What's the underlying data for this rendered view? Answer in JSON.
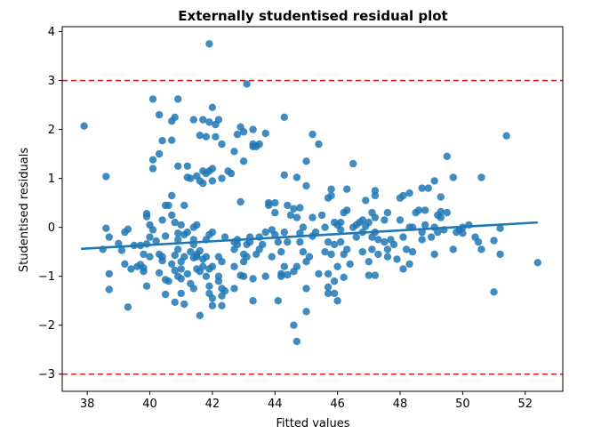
{
  "chart_data": {
    "type": "scatter",
    "title": "Externally studentised residual plot",
    "xlabel": "Fitted values",
    "ylabel": "Studentised residuals",
    "xlim": [
      37.2,
      53.2
    ],
    "ylim": [
      -3.35,
      4.1
    ],
    "xticks": [
      38,
      40,
      42,
      44,
      46,
      48,
      50,
      52
    ],
    "yticks": [
      -3,
      -2,
      -1,
      0,
      1,
      2,
      3,
      4
    ],
    "grid": false,
    "point_color": "#1f77b4",
    "reference_lines": [
      {
        "y": 3,
        "color": "#e41a1c",
        "style": "dashed"
      },
      {
        "y": -3,
        "color": "#e41a1c",
        "style": "dashed"
      }
    ],
    "trend_line": {
      "x": [
        37.8,
        52.4
      ],
      "y": [
        -0.44,
        0.1
      ],
      "color": "#1f77b4"
    },
    "points": [
      [
        37.9,
        2.07
      ],
      [
        38.6,
        1.04
      ],
      [
        38.5,
        -0.45
      ],
      [
        38.7,
        -0.2
      ],
      [
        38.6,
        -0.02
      ],
      [
        38.7,
        -0.95
      ],
      [
        38.7,
        -1.27
      ],
      [
        39.0,
        -0.33
      ],
      [
        39.1,
        -0.47
      ],
      [
        39.2,
        -0.1
      ],
      [
        39.2,
        -0.75
      ],
      [
        39.3,
        -0.04
      ],
      [
        39.3,
        -1.63
      ],
      [
        39.4,
        -0.85
      ],
      [
        39.5,
        -0.37
      ],
      [
        39.6,
        -0.8
      ],
      [
        39.7,
        -0.76
      ],
      [
        39.7,
        -0.37
      ],
      [
        39.8,
        -0.9
      ],
      [
        39.8,
        -0.55
      ],
      [
        39.8,
        -0.83
      ],
      [
        39.9,
        -0.34
      ],
      [
        39.9,
        -1.2
      ],
      [
        39.9,
        0.22
      ],
      [
        40.0,
        0.05
      ],
      [
        39.9,
        0.28
      ],
      [
        40.0,
        -0.6
      ],
      [
        40.0,
        -0.2
      ],
      [
        40.1,
        1.2
      ],
      [
        40.1,
        1.38
      ],
      [
        40.1,
        2.62
      ],
      [
        40.1,
        -0.05
      ],
      [
        40.2,
        -0.28
      ],
      [
        40.3,
        2.3
      ],
      [
        40.3,
        1.5
      ],
      [
        40.3,
        -0.55
      ],
      [
        40.3,
        -0.93
      ],
      [
        40.4,
        -0.6
      ],
      [
        40.4,
        0.15
      ],
      [
        40.4,
        -0.68
      ],
      [
        40.4,
        1.77
      ],
      [
        40.5,
        -1.07
      ],
      [
        40.5,
        -1.37
      ],
      [
        40.5,
        -0.18
      ],
      [
        40.5,
        0.45
      ],
      [
        40.6,
        0.45
      ],
      [
        40.6,
        -1.1
      ],
      [
        40.7,
        2.17
      ],
      [
        40.7,
        -0.75
      ],
      [
        40.7,
        0.25
      ],
      [
        40.7,
        1.78
      ],
      [
        40.7,
        0.65
      ],
      [
        40.8,
        -1.53
      ],
      [
        40.8,
        0.1
      ],
      [
        40.8,
        -0.88
      ],
      [
        40.8,
        -0.57
      ],
      [
        40.9,
        -0.12
      ],
      [
        40.9,
        -0.45
      ],
      [
        41.0,
        -1.05
      ],
      [
        41.0,
        -0.7
      ],
      [
        41.0,
        -1.35
      ],
      [
        40.8,
        2.25
      ],
      [
        40.9,
        1.25
      ],
      [
        40.9,
        2.62
      ],
      [
        40.9,
        -0.25
      ],
      [
        40.9,
        -1.0
      ],
      [
        41.0,
        0.05
      ],
      [
        41.0,
        -0.85
      ],
      [
        41.1,
        -1.57
      ],
      [
        41.1,
        -0.6
      ],
      [
        41.1,
        0.45
      ],
      [
        41.1,
        -0.15
      ],
      [
        41.2,
        1.25
      ],
      [
        41.2,
        1.02
      ],
      [
        41.2,
        -0.1
      ],
      [
        41.2,
        -0.95
      ],
      [
        41.3,
        1.0
      ],
      [
        41.3,
        -1.15
      ],
      [
        41.3,
        -0.5
      ],
      [
        41.4,
        2.2
      ],
      [
        41.4,
        -1.25
      ],
      [
        41.4,
        -0.35
      ],
      [
        41.4,
        0.0
      ],
      [
        41.4,
        -0.62
      ],
      [
        41.4,
        -0.25
      ],
      [
        41.5,
        1.05
      ],
      [
        41.5,
        0.05
      ],
      [
        41.5,
        -0.6
      ],
      [
        41.5,
        -0.85
      ],
      [
        41.5,
        -0.55
      ],
      [
        41.6,
        1.88
      ],
      [
        41.6,
        -1.8
      ],
      [
        41.6,
        0.95
      ],
      [
        41.6,
        -0.9
      ],
      [
        41.6,
        -0.48
      ],
      [
        41.7,
        2.2
      ],
      [
        41.7,
        -0.8
      ],
      [
        41.7,
        -0.65
      ],
      [
        41.7,
        0.9
      ],
      [
        41.7,
        1.15
      ],
      [
        41.8,
        -0.6
      ],
      [
        41.8,
        -1.0
      ],
      [
        41.8,
        1.1
      ],
      [
        41.8,
        1.85
      ],
      [
        41.8,
        -0.25
      ],
      [
        41.9,
        3.75
      ],
      [
        41.9,
        2.15
      ],
      [
        41.9,
        1.15
      ],
      [
        41.9,
        -1.2
      ],
      [
        41.9,
        -1.35
      ],
      [
        41.9,
        -0.15
      ],
      [
        41.9,
        -0.85
      ],
      [
        42.0,
        -1.6
      ],
      [
        42.0,
        2.45
      ],
      [
        42.0,
        1.2
      ],
      [
        42.0,
        -0.8
      ],
      [
        42.0,
        -1.45
      ],
      [
        42.0,
        -0.1
      ],
      [
        42.0,
        0.95
      ],
      [
        42.1,
        2.1
      ],
      [
        42.1,
        1.85
      ],
      [
        42.2,
        -0.6
      ],
      [
        42.2,
        2.2
      ],
      [
        42.2,
        -1.0
      ],
      [
        42.2,
        -1.1
      ],
      [
        42.3,
        -1.6
      ],
      [
        42.3,
        1.7
      ],
      [
        42.3,
        1.0
      ],
      [
        42.3,
        -1.4
      ],
      [
        42.3,
        -1.25
      ],
      [
        42.3,
        -0.7
      ],
      [
        42.4,
        -1.3
      ],
      [
        42.4,
        -0.2
      ],
      [
        42.5,
        1.15
      ],
      [
        42.6,
        1.1
      ],
      [
        42.7,
        -0.3
      ],
      [
        42.7,
        -0.8
      ],
      [
        42.7,
        -1.25
      ],
      [
        42.7,
        -0.45
      ],
      [
        42.7,
        1.55
      ],
      [
        42.8,
        1.9
      ],
      [
        42.8,
        -0.35
      ],
      [
        42.8,
        -0.25
      ],
      [
        42.9,
        -0.98
      ],
      [
        42.9,
        2.05
      ],
      [
        42.9,
        0.52
      ],
      [
        43.0,
        -0.55
      ],
      [
        43.0,
        -0.7
      ],
      [
        43.0,
        -1.0
      ],
      [
        43.0,
        1.95
      ],
      [
        43.0,
        1.35
      ],
      [
        43.1,
        2.93
      ],
      [
        43.1,
        -0.35
      ],
      [
        43.1,
        -0.6
      ],
      [
        43.2,
        -0.2
      ],
      [
        43.2,
        -0.3
      ],
      [
        43.3,
        -1.05
      ],
      [
        43.3,
        -1.5
      ],
      [
        43.3,
        2.0
      ],
      [
        43.3,
        1.65
      ],
      [
        43.3,
        1.7
      ],
      [
        43.4,
        1.65
      ],
      [
        43.4,
        -0.55
      ],
      [
        43.5,
        1.7
      ],
      [
        43.5,
        -0.2
      ],
      [
        43.5,
        -0.45
      ],
      [
        43.6,
        -0.35
      ],
      [
        43.7,
        -0.1
      ],
      [
        43.7,
        1.92
      ],
      [
        43.7,
        -1.0
      ],
      [
        43.8,
        0.5
      ],
      [
        43.8,
        0.45
      ],
      [
        43.9,
        -0.05
      ],
      [
        43.9,
        -0.6
      ],
      [
        44.0,
        0.5
      ],
      [
        44.0,
        0.3
      ],
      [
        44.0,
        -0.15
      ],
      [
        44.1,
        -0.3
      ],
      [
        44.1,
        -1.5
      ],
      [
        44.2,
        -1.0
      ],
      [
        44.2,
        -0.5
      ],
      [
        44.2,
        -0.95
      ],
      [
        44.3,
        -0.8
      ],
      [
        44.3,
        2.25
      ],
      [
        44.3,
        1.07
      ],
      [
        44.3,
        -0.1
      ],
      [
        44.4,
        0.45
      ],
      [
        44.4,
        -0.3
      ],
      [
        44.4,
        -0.97
      ],
      [
        44.5,
        0.25
      ],
      [
        44.6,
        -0.9
      ],
      [
        44.6,
        -2.0
      ],
      [
        44.6,
        0.38
      ],
      [
        44.7,
        1.02
      ],
      [
        44.7,
        0.2
      ],
      [
        44.7,
        -0.8
      ],
      [
        44.7,
        -2.33
      ],
      [
        44.8,
        0.4
      ],
      [
        44.8,
        -0.12
      ],
      [
        44.8,
        -0.3
      ],
      [
        44.9,
        0.0
      ],
      [
        44.9,
        -0.5
      ],
      [
        45.0,
        1.35
      ],
      [
        45.0,
        0.85
      ],
      [
        45.0,
        -1.25
      ],
      [
        45.0,
        -1.72
      ],
      [
        45.0,
        -0.7
      ],
      [
        45.1,
        -0.6
      ],
      [
        45.2,
        1.9
      ],
      [
        45.2,
        0.2
      ],
      [
        45.2,
        -0.18
      ],
      [
        45.3,
        -0.1
      ],
      [
        45.4,
        -0.95
      ],
      [
        45.4,
        1.7
      ],
      [
        45.5,
        0.25
      ],
      [
        45.6,
        0.0
      ],
      [
        45.6,
        -0.5
      ],
      [
        45.7,
        -0.3
      ],
      [
        45.7,
        0.6
      ],
      [
        45.7,
        -0.95
      ],
      [
        45.7,
        -1.35
      ],
      [
        45.7,
        -1.22
      ],
      [
        45.8,
        0.78
      ],
      [
        45.8,
        0.65
      ],
      [
        45.8,
        -0.55
      ],
      [
        45.9,
        0.1
      ],
      [
        45.9,
        -0.35
      ],
      [
        45.9,
        -1.1
      ],
      [
        45.9,
        -1.35
      ],
      [
        46.0,
        -1.5
      ],
      [
        46.0,
        0.05
      ],
      [
        46.0,
        -0.8
      ],
      [
        46.1,
        -0.3
      ],
      [
        46.1,
        0.1
      ],
      [
        46.1,
        -0.05
      ],
      [
        46.2,
        0.3
      ],
      [
        46.2,
        -0.55
      ],
      [
        46.2,
        -1.02
      ],
      [
        46.3,
        0.35
      ],
      [
        46.3,
        -0.45
      ],
      [
        46.3,
        0.78
      ],
      [
        46.4,
        -0.75
      ],
      [
        46.5,
        1.3
      ],
      [
        46.5,
        0.0
      ],
      [
        46.6,
        -0.2
      ],
      [
        46.6,
        0.05
      ],
      [
        46.7,
        0.1
      ],
      [
        46.8,
        0.15
      ],
      [
        46.8,
        -0.5
      ],
      [
        46.8,
        -0.1
      ],
      [
        46.9,
        0.02
      ],
      [
        46.9,
        0.55
      ],
      [
        47.0,
        -0.7
      ],
      [
        47.0,
        -0.98
      ],
      [
        47.0,
        0.1
      ],
      [
        47.1,
        0.3
      ],
      [
        47.1,
        -0.2
      ],
      [
        47.1,
        -0.45
      ],
      [
        47.2,
        -0.1
      ],
      [
        47.2,
        0.2
      ],
      [
        47.2,
        0.65
      ],
      [
        47.2,
        0.75
      ],
      [
        47.2,
        -0.98
      ],
      [
        47.3,
        -0.25
      ],
      [
        47.3,
        -0.55
      ],
      [
        47.5,
        -0.3
      ],
      [
        47.5,
        0.15
      ],
      [
        47.6,
        -0.45
      ],
      [
        47.6,
        0.3
      ],
      [
        47.6,
        -0.6
      ],
      [
        47.7,
        -0.25
      ],
      [
        47.8,
        -0.35
      ],
      [
        47.9,
        -0.65
      ],
      [
        48.0,
        0.6
      ],
      [
        48.0,
        0.15
      ],
      [
        48.1,
        -0.2
      ],
      [
        48.1,
        -0.85
      ],
      [
        48.1,
        0.65
      ],
      [
        48.2,
        -0.45
      ],
      [
        48.3,
        0.0
      ],
      [
        48.3,
        -0.75
      ],
      [
        48.3,
        0.7
      ],
      [
        48.4,
        0.0
      ],
      [
        48.4,
        -0.5
      ],
      [
        48.5,
        0.3
      ],
      [
        48.6,
        0.35
      ],
      [
        48.7,
        -0.1
      ],
      [
        48.7,
        0.8
      ],
      [
        48.7,
        -0.25
      ],
      [
        48.8,
        0.05
      ],
      [
        48.8,
        0.35
      ],
      [
        48.9,
        0.8
      ],
      [
        49.0,
        -0.2
      ],
      [
        49.1,
        0.95
      ],
      [
        49.1,
        -0.55
      ],
      [
        49.1,
        0.0
      ],
      [
        49.2,
        -0.1
      ],
      [
        49.2,
        0.25
      ],
      [
        49.3,
        0.2
      ],
      [
        49.3,
        0.32
      ],
      [
        49.3,
        0.62
      ],
      [
        49.4,
        -0.05
      ],
      [
        49.5,
        1.45
      ],
      [
        49.5,
        0.3
      ],
      [
        49.7,
        1.02
      ],
      [
        49.7,
        -0.45
      ],
      [
        49.8,
        -0.1
      ],
      [
        49.9,
        -0.05
      ],
      [
        50.0,
        0.0
      ],
      [
        50.0,
        -0.12
      ],
      [
        50.2,
        0.05
      ],
      [
        50.4,
        -0.2
      ],
      [
        50.5,
        -0.3
      ],
      [
        50.6,
        -0.45
      ],
      [
        50.6,
        1.02
      ],
      [
        51.0,
        -0.27
      ],
      [
        51.0,
        -1.32
      ],
      [
        51.2,
        -0.55
      ],
      [
        51.2,
        -0.02
      ],
      [
        51.4,
        1.87
      ],
      [
        52.4,
        -0.72
      ]
    ]
  }
}
